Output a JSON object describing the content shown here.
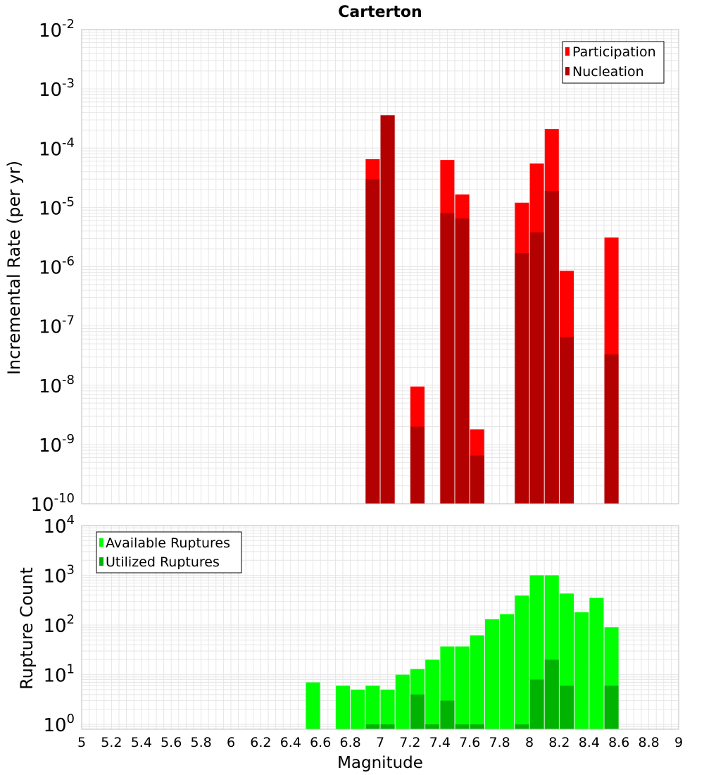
{
  "chart_data": [
    {
      "type": "bar",
      "title": "Carterton",
      "xlabel": "",
      "ylabel": "Incremental Rate (per yr)",
      "scale": "log",
      "ylim": [
        1e-10,
        0.01
      ],
      "xlim": [
        5,
        9
      ],
      "y_ticks": [
        {
          "base": "10",
          "exp": "-10"
        },
        {
          "base": "10",
          "exp": "-9"
        },
        {
          "base": "10",
          "exp": "-8"
        },
        {
          "base": "10",
          "exp": "-7"
        },
        {
          "base": "10",
          "exp": "-6"
        },
        {
          "base": "10",
          "exp": "-5"
        },
        {
          "base": "10",
          "exp": "-4"
        },
        {
          "base": "10",
          "exp": "-3"
        },
        {
          "base": "10",
          "exp": "-2"
        }
      ],
      "legend": {
        "placement": "top-right",
        "entries": [
          "Participation",
          "Nucleation"
        ]
      },
      "colors": {
        "Participation": "#ff0000",
        "Nucleation": "#b30000"
      },
      "grid": true,
      "series": [
        {
          "name": "Participation",
          "x": [
            6.95,
            7.05,
            7.25,
            7.45,
            7.55,
            7.65,
            7.95,
            8.05,
            8.15,
            8.25,
            8.55
          ],
          "values": [
            6.5e-05,
            0.00036,
            9.5e-09,
            6.3e-05,
            1.65e-05,
            1.8e-09,
            1.2e-05,
            5.5e-05,
            0.00021,
            8.5e-07,
            3.1e-06
          ]
        },
        {
          "name": "Nucleation",
          "x": [
            6.95,
            7.05,
            7.25,
            7.45,
            7.55,
            7.65,
            7.95,
            8.05,
            8.15,
            8.25,
            8.55
          ],
          "values": [
            3e-05,
            0.00036,
            2e-09,
            8e-06,
            6.5e-06,
            6.5e-10,
            1.7e-06,
            3.8e-06,
            1.9e-05,
            6.5e-08,
            3.3e-08
          ]
        }
      ]
    },
    {
      "type": "bar",
      "title": "",
      "xlabel": "Magnitude",
      "ylabel": "Rupture Count",
      "scale": "log",
      "ylim": [
        0.8,
        10000
      ],
      "xlim": [
        5,
        9
      ],
      "x_ticks": [
        "5",
        "5.2",
        "5.4",
        "5.6",
        "5.8",
        "6",
        "6.2",
        "6.4",
        "6.6",
        "6.8",
        "7",
        "7.2",
        "7.4",
        "7.6",
        "7.8",
        "8",
        "8.2",
        "8.4",
        "8.6",
        "8.8",
        "9"
      ],
      "y_ticks": [
        {
          "base": "10",
          "exp": "0"
        },
        {
          "base": "10",
          "exp": "1"
        },
        {
          "base": "10",
          "exp": "2"
        },
        {
          "base": "10",
          "exp": "3"
        },
        {
          "base": "10",
          "exp": "4"
        }
      ],
      "legend": {
        "placement": "top-left",
        "entries": [
          "Available Ruptures",
          "Utilized Ruptures"
        ]
      },
      "colors": {
        "Available Ruptures": "#00ff00",
        "Utilized Ruptures": "#00b300"
      },
      "grid": true,
      "series": [
        {
          "name": "Available Ruptures",
          "x": [
            6.55,
            6.75,
            6.85,
            6.95,
            7.05,
            7.15,
            7.25,
            7.35,
            7.45,
            7.55,
            7.65,
            7.75,
            7.85,
            7.95,
            8.05,
            8.15,
            8.25,
            8.35,
            8.45,
            8.55
          ],
          "values": [
            7,
            6,
            5,
            6,
            5,
            10,
            13,
            20,
            37,
            37,
            62,
            130,
            165,
            390,
            1000,
            1000,
            430,
            180,
            350,
            90
          ]
        },
        {
          "name": "Utilized Ruptures",
          "x": [
            6.95,
            7.05,
            7.25,
            7.35,
            7.45,
            7.55,
            7.65,
            7.95,
            8.05,
            8.15,
            8.25,
            8.55
          ],
          "values": [
            1,
            1,
            4,
            1,
            3,
            1,
            1,
            1,
            8,
            20,
            6,
            6
          ]
        }
      ]
    }
  ]
}
